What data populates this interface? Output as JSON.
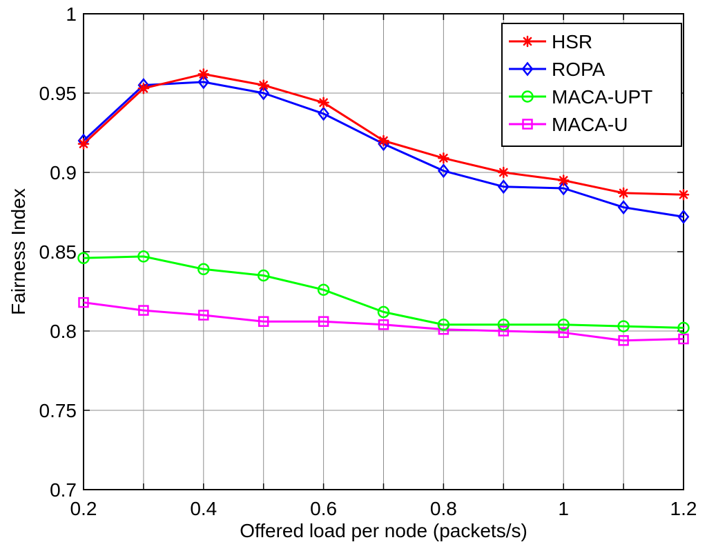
{
  "chart_data": {
    "type": "line",
    "title": "",
    "xlabel": "Offered load per node (packets/s)",
    "ylabel": "Fairness Index",
    "xlim": [
      0.2,
      1.2
    ],
    "ylim": [
      0.7,
      1.0
    ],
    "xticks": [
      0.2,
      0.4,
      0.6,
      0.8,
      1.0,
      1.2
    ],
    "xtick_labels": [
      "0.2",
      "0.4",
      "0.6",
      "0.8",
      "1",
      "1.2"
    ],
    "yticks": [
      0.7,
      0.75,
      0.8,
      0.85,
      0.9,
      0.95,
      1.0
    ],
    "ytick_labels": [
      "0.7",
      "0.75",
      "0.8",
      "0.85",
      "0.9",
      "0.95",
      "1"
    ],
    "grid": true,
    "legend_position": "top-right",
    "x": [
      0.2,
      0.3,
      0.4,
      0.5,
      0.6,
      0.7,
      0.8,
      0.9,
      1.0,
      1.1,
      1.2
    ],
    "series": [
      {
        "name": "HSR",
        "color": "#ff0000",
        "marker": "asterisk",
        "values": [
          0.918,
          0.953,
          0.962,
          0.955,
          0.944,
          0.92,
          0.909,
          0.9,
          0.895,
          0.887,
          0.886
        ]
      },
      {
        "name": "ROPA",
        "color": "#0000ff",
        "marker": "diamond",
        "values": [
          0.92,
          0.955,
          0.957,
          0.95,
          0.937,
          0.918,
          0.901,
          0.891,
          0.89,
          0.878,
          0.872
        ]
      },
      {
        "name": "MACA-UPT",
        "color": "#00ff00",
        "marker": "circle",
        "values": [
          0.846,
          0.847,
          0.839,
          0.835,
          0.826,
          0.812,
          0.804,
          0.804,
          0.804,
          0.803,
          0.802
        ]
      },
      {
        "name": "MACA-U",
        "color": "#ff00ff",
        "marker": "square",
        "values": [
          0.818,
          0.813,
          0.81,
          0.806,
          0.806,
          0.804,
          0.801,
          0.8,
          0.799,
          0.794,
          0.795
        ]
      }
    ]
  }
}
